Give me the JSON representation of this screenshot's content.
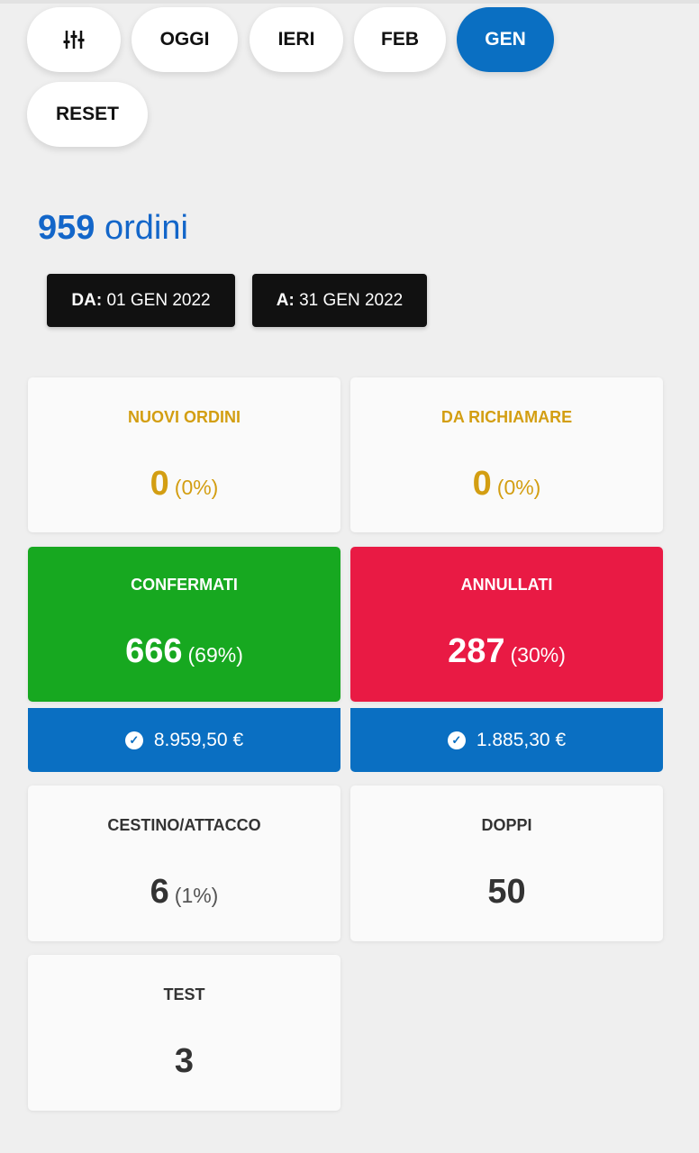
{
  "filters": {
    "settings_icon": "sliders-icon",
    "buttons": [
      "OGGI",
      "IERI",
      "FEB",
      "GEN"
    ],
    "active": "GEN",
    "reset": "RESET"
  },
  "summary": {
    "count": "959",
    "label": "ordini"
  },
  "range": {
    "from_label": "DA:",
    "from": "01 GEN 2022",
    "to_label": "A:",
    "to": "31 GEN 2022"
  },
  "cards": {
    "nuovi": {
      "title": "NUOVI ORDINI",
      "value": "0",
      "pct": "(0%)"
    },
    "richiamare": {
      "title": "DA RICHIAMARE",
      "value": "0",
      "pct": "(0%)"
    },
    "confermati": {
      "title": "CONFERMATI",
      "value": "666",
      "pct": "(69%)",
      "amount": "8.959,50 €"
    },
    "annullati": {
      "title": "ANNULLATI",
      "value": "287",
      "pct": "(30%)",
      "amount": "1.885,30 €"
    },
    "cestino": {
      "title": "CESTINO/ATTACCO",
      "value": "6",
      "pct": "(1%)"
    },
    "doppi": {
      "title": "DOPPI",
      "value": "50"
    },
    "test": {
      "title": "TEST",
      "value": "3"
    }
  },
  "colors": {
    "accent": "#0a6fc2",
    "green": "#17a820",
    "red": "#e91a44",
    "yellow": "#d39e12"
  }
}
